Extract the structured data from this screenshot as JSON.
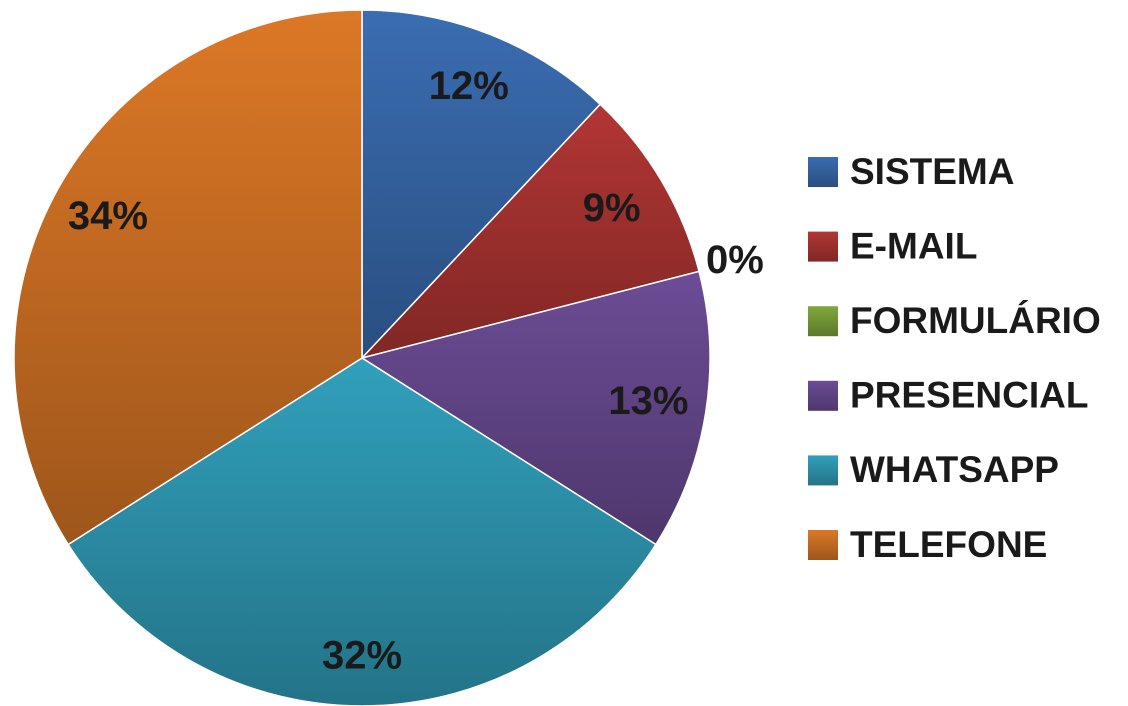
{
  "chart_data": {
    "type": "pie",
    "categories": [
      "SISTEMA",
      "E-MAIL",
      "FORMULÁRIO",
      "PRESENCIAL",
      "WHATSAPP",
      "TELEFONE"
    ],
    "values": [
      12,
      9,
      0,
      13,
      32,
      34
    ],
    "value_labels": [
      "12%",
      "9%",
      "0%",
      "13%",
      "32%",
      "34%"
    ],
    "colors": [
      "#3a6db2",
      "#b23634",
      "#80a83c",
      "#6c4c96",
      "#31a0bc",
      "#dc7826"
    ],
    "legend": "right"
  }
}
